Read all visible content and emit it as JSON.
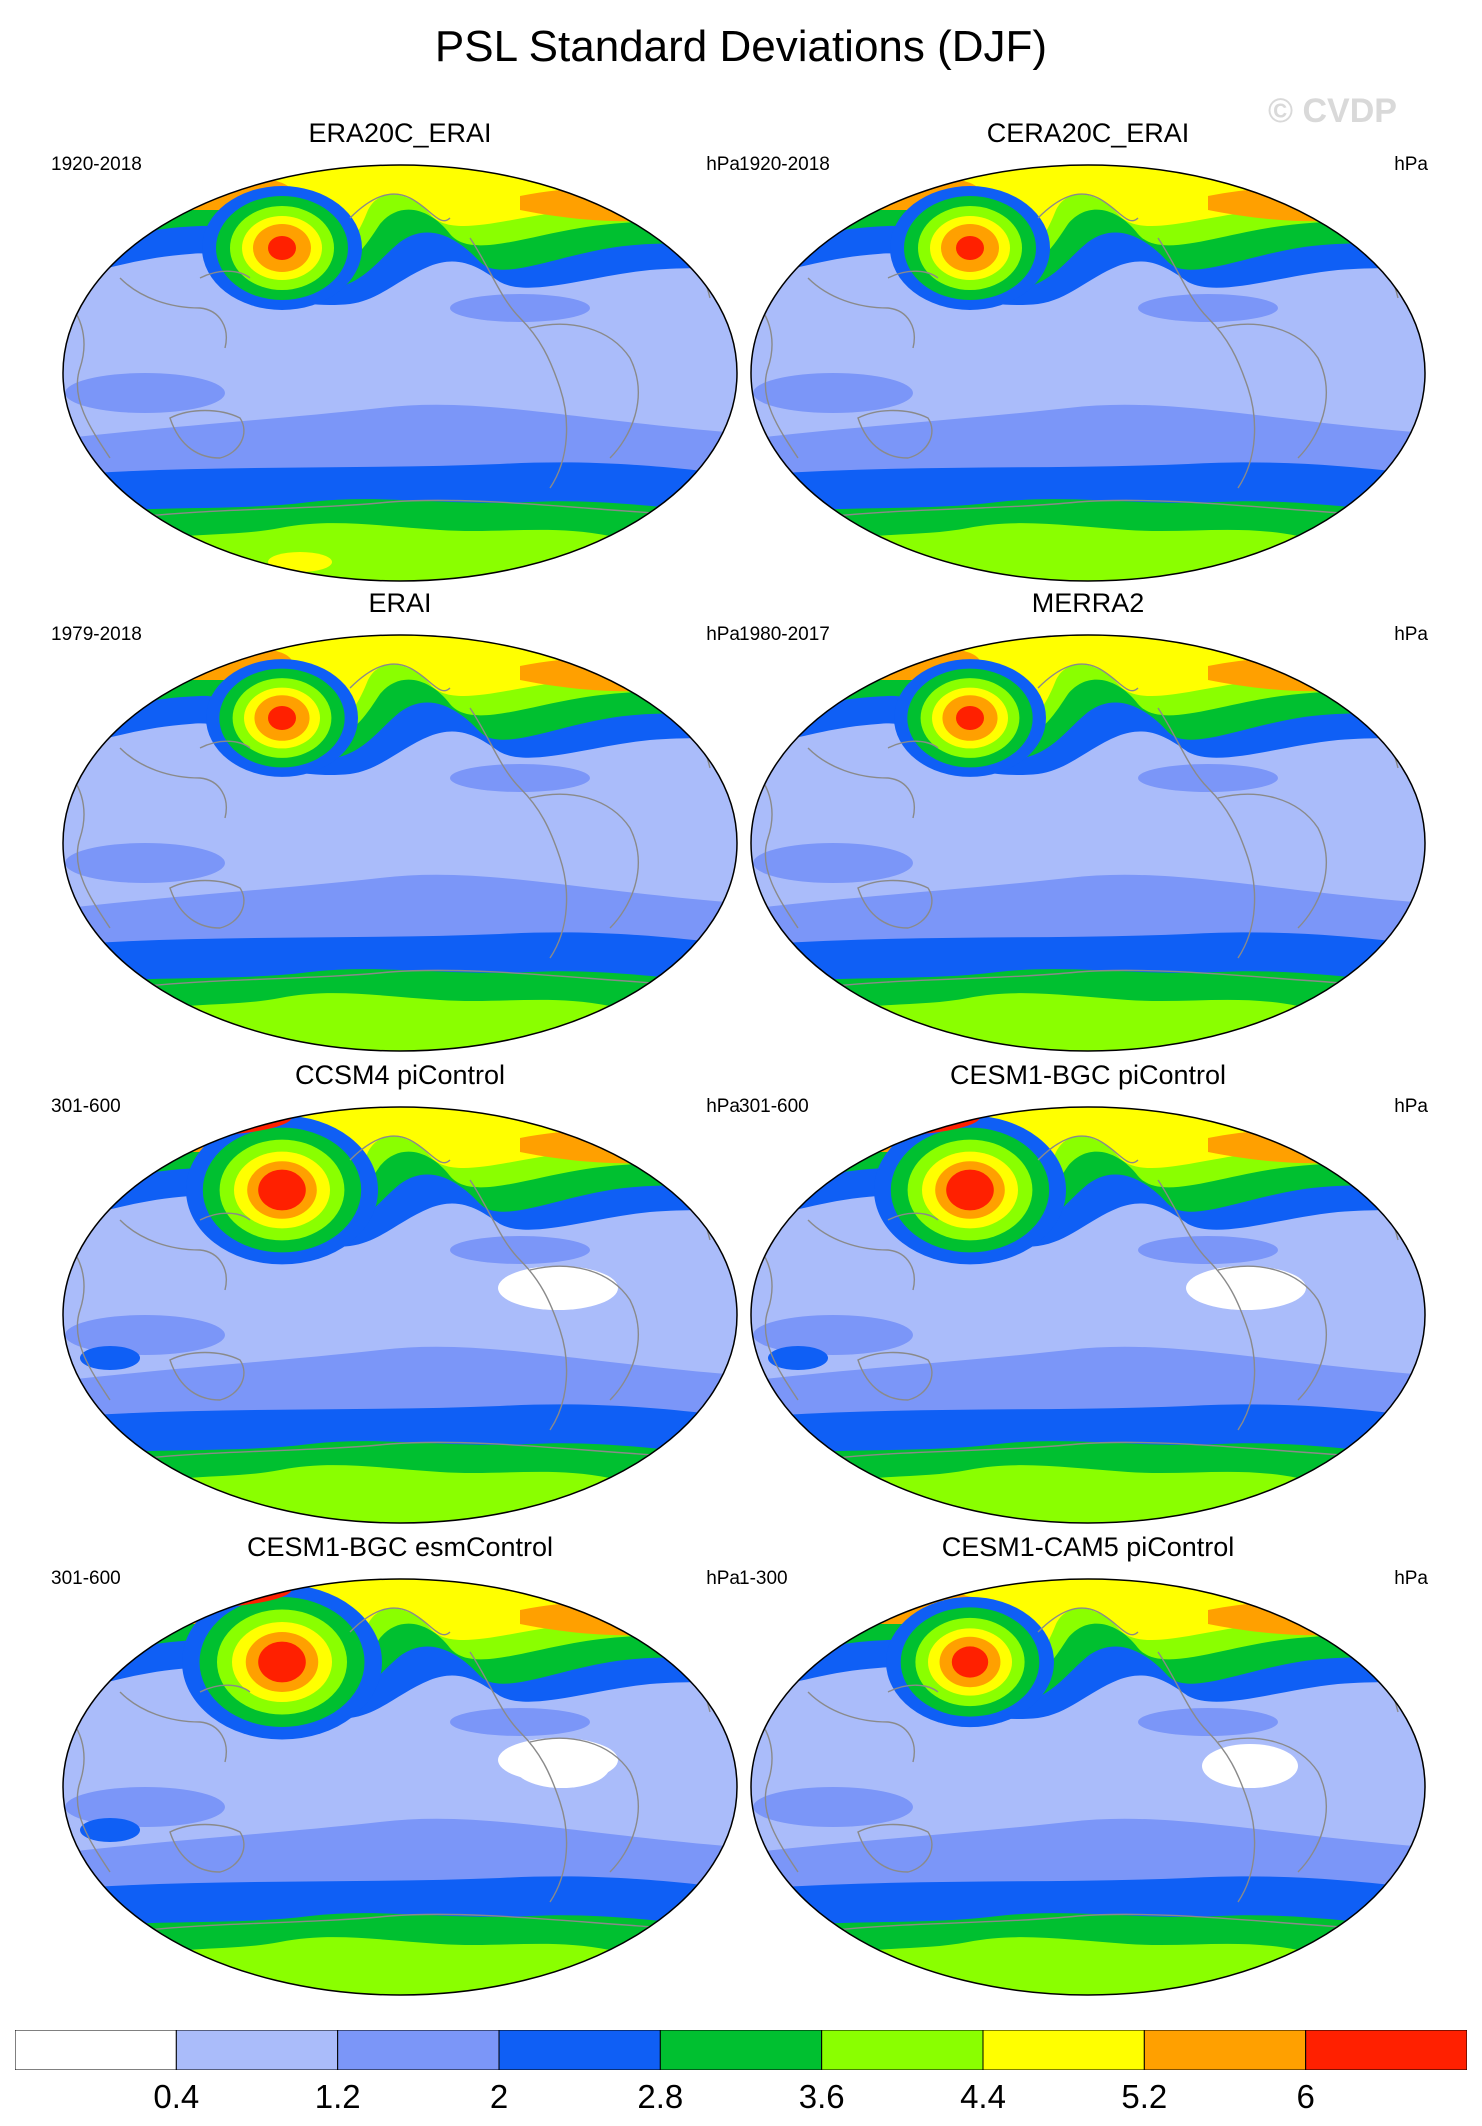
{
  "figure": {
    "title": "PSL Standard Deviations (DJF)",
    "watermark": "© CVDP"
  },
  "panels": [
    {
      "title": "ERA20C_ERAI",
      "years": "1920-2018",
      "units": "hPa"
    },
    {
      "title": "CERA20C_ERAI",
      "years": "1920-2018",
      "units": "hPa"
    },
    {
      "title": "ERAI",
      "years": "1979-2018",
      "units": "hPa"
    },
    {
      "title": "MERRA2",
      "years": "1980-2017",
      "units": "hPa"
    },
    {
      "title": "CCSM4 piControl",
      "years": "301-600",
      "units": "hPa"
    },
    {
      "title": "CESM1-BGC piControl",
      "years": "301-600",
      "units": "hPa"
    },
    {
      "title": "CESM1-BGC esmControl",
      "years": "301-600",
      "units": "hPa"
    },
    {
      "title": "CESM1-CAM5 piControl",
      "years": "1-300",
      "units": "hPa"
    }
  ],
  "colorbar": {
    "labels": [
      "0.4",
      "1.2",
      "2",
      "2.8",
      "3.6",
      "4.4",
      "5.2",
      "6"
    ],
    "colors": [
      "#ffffff",
      "#aabcfa",
      "#7b96f8",
      "#0f5ff5",
      "#00c030",
      "#8aff00",
      "#ffff00",
      "#ffa000",
      "#ff2000"
    ]
  },
  "palette": {
    "coastline": "#8a8a8a",
    "outline": "#000000"
  }
}
